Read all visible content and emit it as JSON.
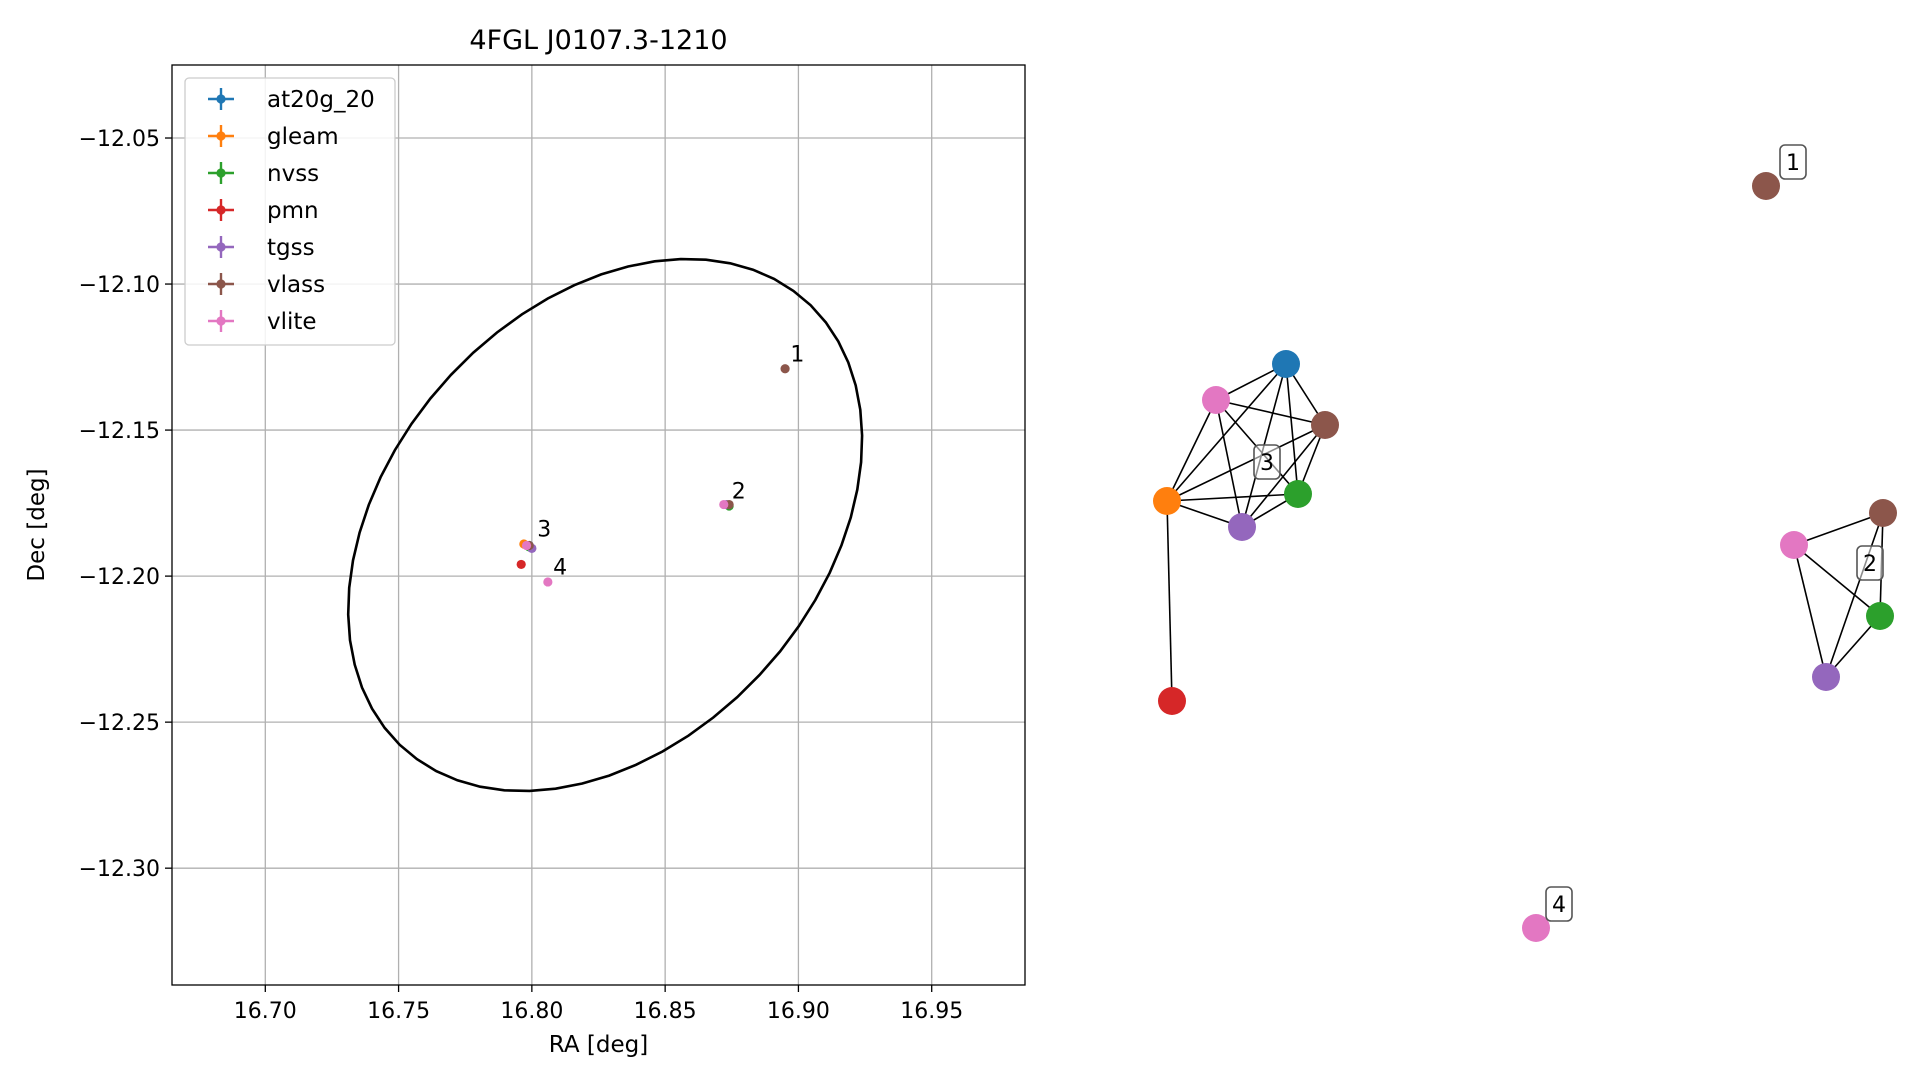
{
  "chart_data": [
    {
      "type": "scatter",
      "title": "4FGL J0107.3-1210",
      "xlabel": "RA [deg]",
      "ylabel": "Dec [deg]",
      "xlim": [
        16.665,
        16.985
      ],
      "ylim": [
        -12.34,
        -12.025
      ],
      "xticks": [
        16.7,
        16.75,
        16.8,
        16.85,
        16.9,
        16.95
      ],
      "xtick_labels": [
        "16.70",
        "16.75",
        "16.80",
        "16.85",
        "16.90",
        "16.95"
      ],
      "yticks": [
        -12.05,
        -12.1,
        -12.15,
        -12.2,
        -12.25,
        -12.3
      ],
      "ytick_labels": [
        "−12.05",
        "−12.10",
        "−12.15",
        "−12.20",
        "−12.25",
        "−12.30"
      ],
      "grid": true,
      "legend_placement": "top-left",
      "series": [
        {
          "name": "at20g_20",
          "color": "#1f77b4",
          "points": [
            [
              16.799,
              -12.1895
            ]
          ]
        },
        {
          "name": "gleam",
          "color": "#ff7f0e",
          "points": [
            [
              16.797,
              -12.189
            ]
          ]
        },
        {
          "name": "nvss",
          "color": "#2ca02c",
          "points": [
            [
              16.799,
              -12.19
            ],
            [
              16.874,
              -12.176
            ]
          ]
        },
        {
          "name": "pmn",
          "color": "#d62728",
          "points": [
            [
              16.796,
              -12.196
            ]
          ]
        },
        {
          "name": "tgss",
          "color": "#9467bd",
          "points": [
            [
              16.8,
              -12.1905
            ],
            [
              16.873,
              -12.1755
            ]
          ]
        },
        {
          "name": "vlass",
          "color": "#8c564b",
          "points": [
            [
              16.799,
              -12.1895
            ],
            [
              16.874,
              -12.1755
            ],
            [
              16.895,
              -12.129
            ]
          ]
        },
        {
          "name": "vlite",
          "color": "#e377c2",
          "points": [
            [
              16.798,
              -12.1895
            ],
            [
              16.872,
              -12.1755
            ],
            [
              16.806,
              -12.202
            ]
          ]
        }
      ],
      "ellipse": {
        "center": [
          16.8275,
          -12.1825
        ],
        "semi_axes": [
          0.108,
          0.077
        ],
        "rotation_deg": 40
      },
      "annotations": [
        {
          "text": "1",
          "x": 16.897,
          "y": -12.1265
        },
        {
          "text": "2",
          "x": 16.875,
          "y": -12.1735
        },
        {
          "text": "3",
          "x": 16.802,
          "y": -12.1865
        },
        {
          "text": "4",
          "x": 16.808,
          "y": -12.1995
        }
      ]
    },
    {
      "type": "diagram",
      "groups": [
        {
          "label": "1",
          "nodes": [
            {
              "survey": "vlass",
              "color": "#8c564b"
            }
          ],
          "edges": []
        },
        {
          "label": "2",
          "nodes": [
            {
              "survey": "vlass",
              "color": "#8c564b"
            },
            {
              "survey": "vlite",
              "color": "#e377c2"
            },
            {
              "survey": "nvss",
              "color": "#2ca02c"
            },
            {
              "survey": "tgss",
              "color": "#9467bd"
            }
          ],
          "edges": [
            [
              "vlass",
              "vlite"
            ],
            [
              "vlass",
              "nvss"
            ],
            [
              "vlass",
              "tgss"
            ],
            [
              "vlite",
              "nvss"
            ],
            [
              "vlite",
              "tgss"
            ],
            [
              "nvss",
              "tgss"
            ]
          ]
        },
        {
          "label": "3",
          "nodes": [
            {
              "survey": "at20g_20",
              "color": "#1f77b4"
            },
            {
              "survey": "vlite",
              "color": "#e377c2"
            },
            {
              "survey": "vlass",
              "color": "#8c564b"
            },
            {
              "survey": "gleam",
              "color": "#ff7f0e"
            },
            {
              "survey": "nvss",
              "color": "#2ca02c"
            },
            {
              "survey": "tgss",
              "color": "#9467bd"
            },
            {
              "survey": "pmn",
              "color": "#d62728"
            }
          ],
          "edges": [
            [
              "at20g_20",
              "vlite"
            ],
            [
              "at20g_20",
              "vlass"
            ],
            [
              "at20g_20",
              "gleam"
            ],
            [
              "at20g_20",
              "nvss"
            ],
            [
              "at20g_20",
              "tgss"
            ],
            [
              "vlite",
              "vlass"
            ],
            [
              "vlite",
              "gleam"
            ],
            [
              "vlite",
              "nvss"
            ],
            [
              "vlite",
              "tgss"
            ],
            [
              "vlass",
              "gleam"
            ],
            [
              "vlass",
              "nvss"
            ],
            [
              "vlass",
              "tgss"
            ],
            [
              "gleam",
              "nvss"
            ],
            [
              "gleam",
              "tgss"
            ],
            [
              "gleam",
              "pmn"
            ],
            [
              "nvss",
              "tgss"
            ]
          ]
        },
        {
          "label": "4",
          "nodes": [
            {
              "survey": "vlite",
              "color": "#e377c2"
            }
          ],
          "edges": []
        }
      ]
    }
  ]
}
